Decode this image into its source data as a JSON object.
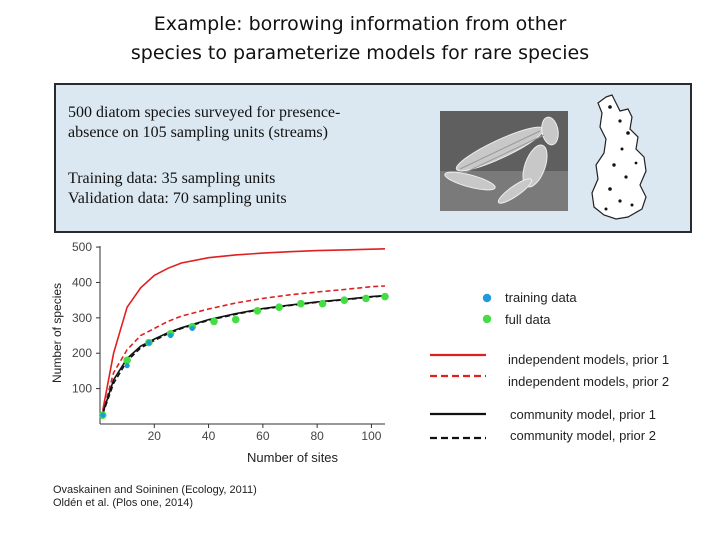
{
  "title": {
    "line1": "Example: borrowing information from other",
    "line2": "species to parameterize models for rare species"
  },
  "infobox": {
    "line1": "500 diatom species surveyed for presence-",
    "line2": "absence on 105 sampling units (streams)",
    "line3": "Training data: 35 sampling units",
    "line4": "Validation data: 70 sampling units"
  },
  "chart_data": {
    "type": "line",
    "xlabel": "Number of sites",
    "ylabel": "Number of species",
    "xlim": [
      0,
      105
    ],
    "ylim": [
      0,
      520
    ],
    "xticks": [
      20,
      40,
      60,
      80,
      100
    ],
    "yticks": [
      100,
      200,
      300,
      400,
      500
    ],
    "series": [
      {
        "name": "independent models, prior 1",
        "color": "#e02020",
        "dash": false,
        "x": [
          1,
          5,
          10,
          15,
          20,
          25,
          30,
          40,
          50,
          60,
          70,
          80,
          90,
          100,
          105
        ],
        "y": [
          38,
          200,
          330,
          385,
          420,
          440,
          455,
          470,
          478,
          483,
          487,
          490,
          492,
          494,
          495
        ]
      },
      {
        "name": "independent models, prior 2",
        "color": "#e02020",
        "dash": true,
        "x": [
          1,
          5,
          10,
          15,
          20,
          25,
          30,
          40,
          50,
          60,
          70,
          80,
          90,
          100,
          105
        ],
        "y": [
          30,
          145,
          210,
          250,
          270,
          290,
          305,
          325,
          342,
          355,
          365,
          373,
          380,
          388,
          390
        ]
      },
      {
        "name": "community model, prior 1",
        "color": "#111111",
        "dash": false,
        "x": [
          1,
          5,
          10,
          15,
          20,
          25,
          30,
          40,
          50,
          60,
          70,
          80,
          90,
          100,
          105
        ],
        "y": [
          30,
          125,
          185,
          220,
          240,
          258,
          272,
          295,
          312,
          326,
          336,
          345,
          352,
          360,
          363
        ]
      },
      {
        "name": "community model, prior 2",
        "color": "#111111",
        "dash": true,
        "x": [
          1,
          5,
          10,
          15,
          20,
          25,
          30,
          40,
          50,
          60,
          70,
          80,
          90,
          100,
          105
        ],
        "y": [
          28,
          115,
          178,
          215,
          236,
          255,
          270,
          293,
          310,
          325,
          335,
          344,
          351,
          359,
          362
        ]
      }
    ],
    "points": [
      {
        "name": "training data",
        "color": "#1f9bd8",
        "x": [
          1,
          10,
          18,
          26,
          34
        ],
        "y": [
          25,
          165,
          230,
          250,
          270
        ]
      },
      {
        "name": "full data",
        "color": "#44dd44",
        "x": [
          1,
          10,
          18,
          26,
          34,
          42,
          50,
          58,
          66,
          74,
          82,
          90,
          98,
          105
        ],
        "y": [
          25,
          180,
          230,
          255,
          275,
          290,
          295,
          320,
          330,
          340,
          340,
          350,
          355,
          360
        ]
      }
    ]
  },
  "legend": {
    "training": "training data",
    "full": "full data",
    "ind1": "independent models, prior 1",
    "ind2": "independent models, prior 2",
    "com1": "community model, prior 1",
    "com2": "community model, prior 2"
  },
  "refs": {
    "line1": "Ovaskainen and Soininen (Ecology, 2011)",
    "line2": "Oldén et al. (Plos one, 2014)"
  }
}
